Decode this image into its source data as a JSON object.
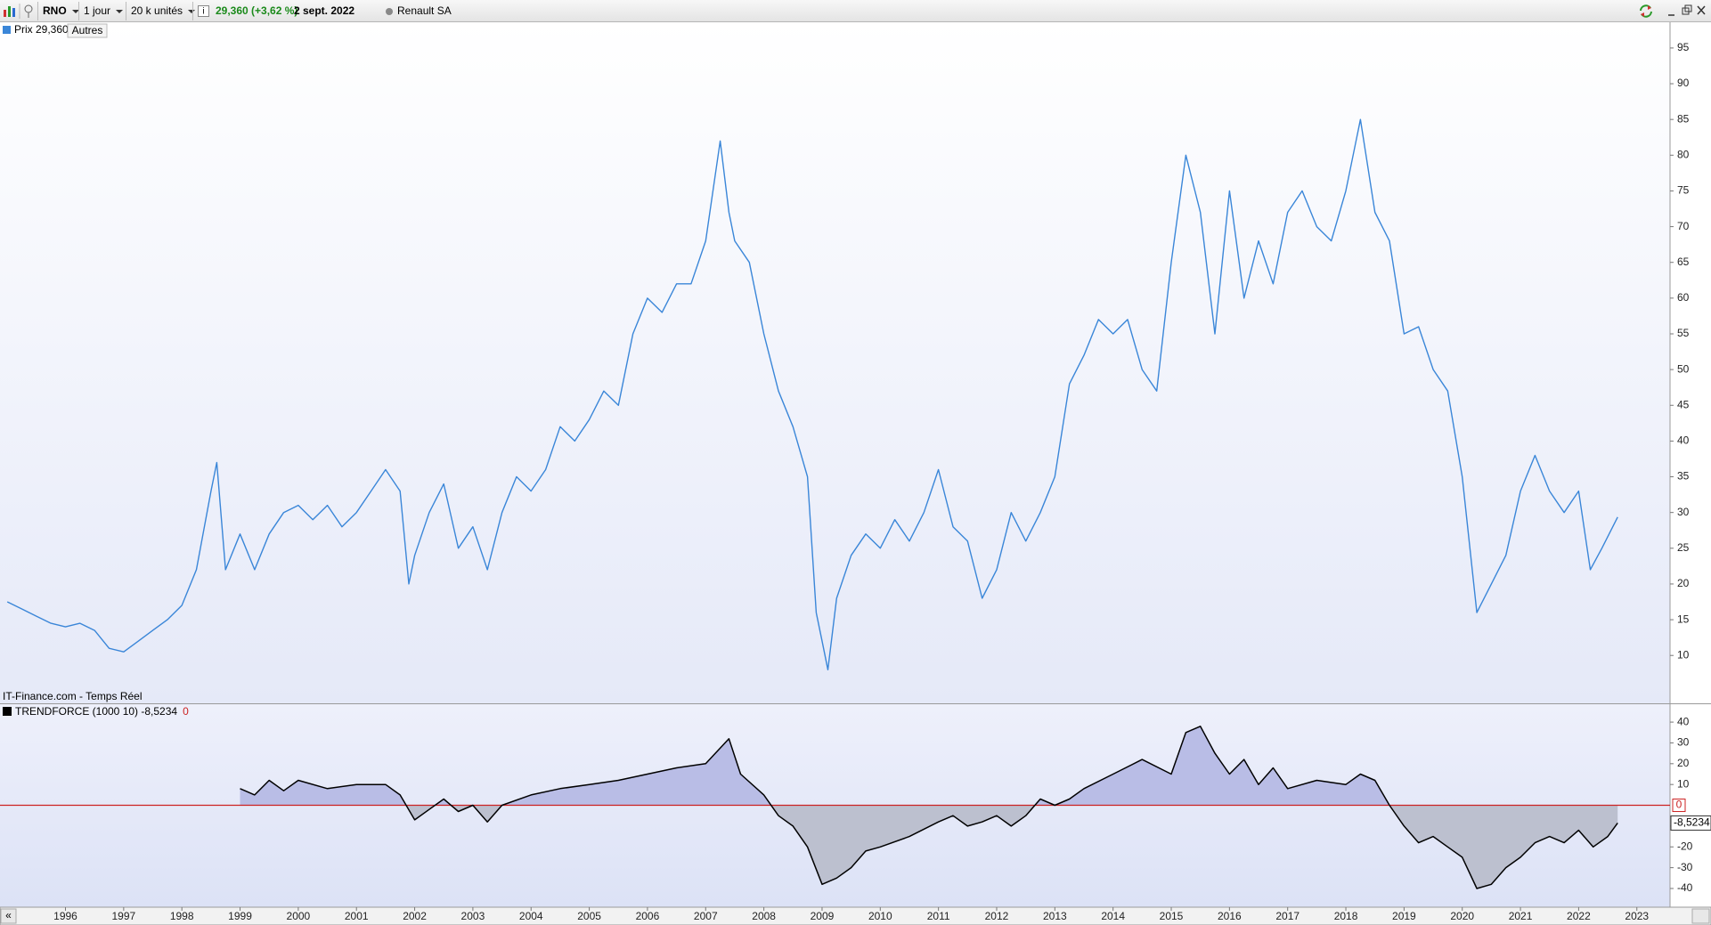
{
  "toolbar": {
    "symbol": "RNO",
    "period": "1 jour",
    "units": "20 k unités",
    "quote": "29,360 (+3,62 %)",
    "date": "2 sept. 2022",
    "name": "Renault SA"
  },
  "buttons": {
    "others": "Autres"
  },
  "source": "IT-Finance.com - Temps Réel",
  "chart_data": [
    {
      "type": "line",
      "x": [
        1995.0,
        1995.25,
        1995.5,
        1995.75,
        1996.0,
        1996.25,
        1996.5,
        1996.75,
        1997.0,
        1997.25,
        1997.5,
        1997.75,
        1998.0,
        1998.25,
        1998.5,
        1998.6,
        1998.75,
        1999.0,
        1999.25,
        1999.5,
        1999.75,
        2000.0,
        2000.25,
        2000.5,
        2000.75,
        2001.0,
        2001.25,
        2001.5,
        2001.75,
        2001.9,
        2002.0,
        2002.25,
        2002.5,
        2002.75,
        2003.0,
        2003.25,
        2003.5,
        2003.75,
        2004.0,
        2004.25,
        2004.5,
        2004.75,
        2005.0,
        2005.25,
        2005.5,
        2005.75,
        2006.0,
        2006.25,
        2006.5,
        2006.75,
        2007.0,
        2007.25,
        2007.4,
        2007.5,
        2007.75,
        2008.0,
        2008.25,
        2008.5,
        2008.75,
        2008.9,
        2009.0,
        2009.1,
        2009.25,
        2009.5,
        2009.75,
        2010.0,
        2010.25,
        2010.5,
        2010.75,
        2011.0,
        2011.25,
        2011.5,
        2011.75,
        2012.0,
        2012.25,
        2012.5,
        2012.75,
        2013.0,
        2013.25,
        2013.5,
        2013.75,
        2014.0,
        2014.25,
        2014.5,
        2014.75,
        2015.0,
        2015.25,
        2015.5,
        2015.75,
        2016.0,
        2016.25,
        2016.5,
        2016.75,
        2017.0,
        2017.25,
        2017.5,
        2017.75,
        2018.0,
        2018.25,
        2018.5,
        2018.75,
        2019.0,
        2019.25,
        2019.5,
        2019.75,
        2020.0,
        2020.25,
        2020.5,
        2020.75,
        2021.0,
        2021.25,
        2021.5,
        2021.75,
        2022.0,
        2022.2,
        2022.4,
        2022.67
      ],
      "series": [
        {
          "name": "Prix 29,360",
          "color": "#3a86d8",
          "values": [
            17.5,
            16.5,
            15.5,
            14.5,
            14,
            14.5,
            13.5,
            11,
            10.5,
            12,
            13.5,
            15,
            17,
            22,
            33,
            37,
            22,
            27,
            22,
            27,
            30,
            31,
            29,
            31,
            28,
            30,
            33,
            36,
            33,
            20,
            24,
            30,
            34,
            25,
            28,
            22,
            30,
            35,
            33,
            36,
            42,
            40,
            43,
            47,
            45,
            55,
            60,
            58,
            62,
            62,
            68,
            82,
            72,
            68,
            65,
            55,
            47,
            42,
            35,
            16,
            12,
            8,
            18,
            24,
            27,
            25,
            29,
            26,
            30,
            36,
            28,
            26,
            18,
            22,
            30,
            26,
            30,
            35,
            48,
            52,
            57,
            55,
            57,
            50,
            47,
            65,
            80,
            72,
            55,
            75,
            60,
            68,
            62,
            72,
            75,
            70,
            68,
            75,
            85,
            72,
            68,
            55,
            56,
            50,
            47,
            35,
            16,
            20,
            24,
            33,
            38,
            33,
            30,
            33,
            22,
            25,
            29.36
          ]
        }
      ],
      "xlim": [
        1994.875,
        2023.57
      ],
      "ylim": [
        3.3,
        98.6
      ],
      "yticks": [
        10,
        15,
        20,
        25,
        30,
        35,
        40,
        45,
        50,
        55,
        60,
        65,
        70,
        75,
        80,
        85,
        90,
        95
      ]
    },
    {
      "type": "area",
      "x": [
        1999.0,
        1999.25,
        1999.5,
        1999.75,
        2000.0,
        2000.5,
        2001.0,
        2001.5,
        2001.75,
        2002.0,
        2002.25,
        2002.5,
        2002.75,
        2003.0,
        2003.25,
        2003.5,
        2004.0,
        2004.5,
        2005.0,
        2005.5,
        2006.0,
        2006.5,
        2007.0,
        2007.4,
        2007.6,
        2008.0,
        2008.25,
        2008.5,
        2008.75,
        2009.0,
        2009.25,
        2009.5,
        2009.75,
        2010.0,
        2010.5,
        2011.0,
        2011.25,
        2011.5,
        2011.75,
        2012.0,
        2012.25,
        2012.5,
        2012.75,
        2013.0,
        2013.25,
        2013.5,
        2014.0,
        2014.5,
        2015.0,
        2015.25,
        2015.5,
        2015.75,
        2016.0,
        2016.25,
        2016.5,
        2016.75,
        2017.0,
        2017.5,
        2018.0,
        2018.25,
        2018.5,
        2018.75,
        2019.0,
        2019.25,
        2019.5,
        2019.75,
        2020.0,
        2020.25,
        2020.5,
        2020.75,
        2021.0,
        2021.25,
        2021.5,
        2021.75,
        2022.0,
        2022.25,
        2022.5,
        2022.67
      ],
      "series": [
        {
          "name": "TRENDFORCE (1000 10) -8,5234",
          "color": "#000000",
          "values": [
            8,
            5,
            12,
            7,
            12,
            8,
            10,
            10,
            5,
            -7,
            -2,
            3,
            -3,
            0,
            -8,
            0,
            5,
            8,
            10,
            12,
            15,
            18,
            20,
            32,
            15,
            5,
            -5,
            -10,
            -20,
            -38,
            -35,
            -30,
            -22,
            -20,
            -15,
            -8,
            -5,
            -10,
            -8,
            -5,
            -10,
            -5,
            3,
            0,
            3,
            8,
            15,
            22,
            15,
            35,
            38,
            25,
            15,
            22,
            10,
            18,
            8,
            12,
            10,
            15,
            12,
            0,
            -10,
            -18,
            -15,
            -20,
            -25,
            -40,
            -38,
            -30,
            -25,
            -18,
            -15,
            -18,
            -12,
            -20,
            -15,
            -8.5234
          ]
        }
      ],
      "last_label": "-8,5234",
      "fill_above": "#b9bde6",
      "fill_below": "#bcc0cf",
      "reference_line": {
        "value": 0,
        "color": "#cc2222"
      },
      "xlim": [
        1994.875,
        2023.57
      ],
      "xticks": [
        1996,
        1997,
        1998,
        1999,
        2000,
        2001,
        2002,
        2003,
        2004,
        2005,
        2006,
        2007,
        2008,
        2009,
        2010,
        2011,
        2012,
        2013,
        2014,
        2015,
        2016,
        2017,
        2018,
        2019,
        2020,
        2021,
        2022,
        2023
      ],
      "ylim": [
        -49,
        48.6
      ],
      "yticks": [
        -40,
        -30,
        -20,
        -10,
        10,
        20,
        30,
        40
      ]
    }
  ]
}
